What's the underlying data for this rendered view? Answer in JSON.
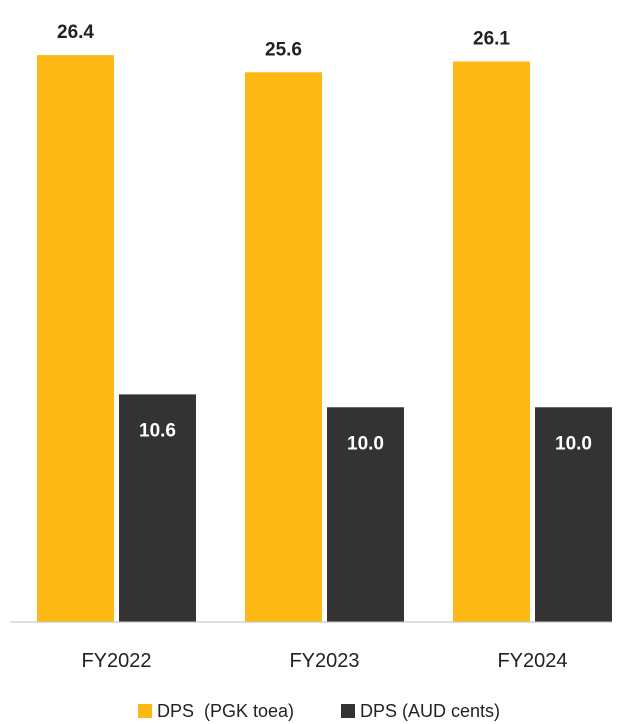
{
  "chart_data": {
    "type": "bar",
    "categories": [
      "FY2022",
      "FY2023",
      "FY2024"
    ],
    "series": [
      {
        "name": "DPS  (PGK toea)",
        "values": [
          26.4,
          25.6,
          26.1
        ],
        "value_labels": [
          "26.4",
          "25.6",
          "26.1"
        ],
        "color": "#FDB813",
        "label_color": "#222222"
      },
      {
        "name": "DPS (AUD cents)",
        "values": [
          10.6,
          10.0,
          10.0
        ],
        "value_labels": [
          "10.6",
          "10.0",
          "10.0"
        ],
        "color": "#333333",
        "label_color": "#ffffff"
      }
    ],
    "title": "",
    "xlabel": "",
    "ylabel": "",
    "ylim": [
      0,
      28.5
    ],
    "grid": false,
    "legend_position": "bottom"
  }
}
